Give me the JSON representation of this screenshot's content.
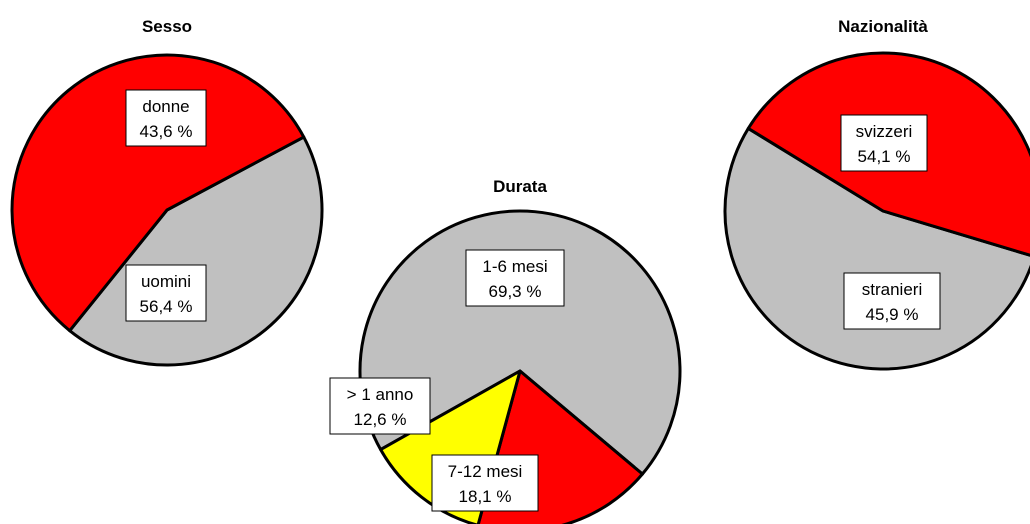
{
  "chart_data": [
    {
      "type": "pie",
      "title": "Sesso",
      "slices": [
        {
          "label": "donne",
          "value_label": "43,6 %",
          "value": 43.6,
          "color": "#C0C0C0"
        },
        {
          "label": "uomini",
          "value_label": "56,4 %",
          "value": 56.4,
          "color": "#FF0000"
        }
      ]
    },
    {
      "type": "pie",
      "title": "Durata",
      "slices": [
        {
          "label": "1-6 mesi",
          "value_label": "69,3 %",
          "value": 69.3,
          "color": "#C0C0C0"
        },
        {
          "label": "7-12 mesi",
          "value_label": "18,1 %",
          "value": 18.1,
          "color": "#FF0000"
        },
        {
          "label": "> 1 anno",
          "value_label": "12,6 %",
          "value": 12.6,
          "color": "#FFFF00"
        }
      ]
    },
    {
      "type": "pie",
      "title": "Nazionalità",
      "slices": [
        {
          "label": "svizzeri",
          "value_label": "54,1 %",
          "value": 54.1,
          "color": "#C0C0C0"
        },
        {
          "label": "stranieri",
          "value_label": "45,9 %",
          "value": 45.9,
          "color": "#FF0000"
        }
      ]
    }
  ]
}
